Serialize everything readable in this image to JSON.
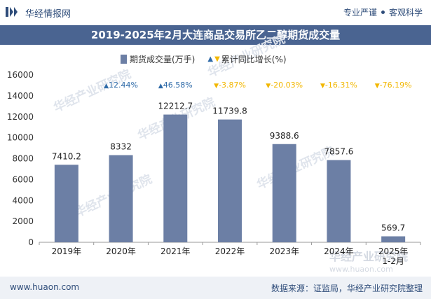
{
  "header": {
    "brand": "华经情报网",
    "tagline_left": "专业严谨",
    "tagline_right": "客观科学"
  },
  "title": "2019-2025年2月大连商品交易所乙二醇期货成交量",
  "footer": {
    "url": "www.huaon.com",
    "source": "数据来源：证监局，华经产业研究院整理"
  },
  "watermark": "华经产业研究院",
  "watermark_url": "www.huaon.com",
  "colors": {
    "bar": "#6c7fa5",
    "title_bg": "#4a6491",
    "up": "#2e6aa8",
    "down": "#f2b700"
  },
  "chart_data": {
    "type": "bar",
    "categories": [
      "2019年",
      "2020年",
      "2021年",
      "2022年",
      "2023年",
      "2024年",
      "2025年\n1-2月"
    ],
    "series": [
      {
        "name": "期货成交量(万手)",
        "values": [
          7410.2,
          8332,
          12212.7,
          11739.8,
          9388.6,
          7857.6,
          569.7
        ]
      },
      {
        "name": "累计同比增长(%)",
        "values": [
          null,
          12.44,
          46.58,
          -3.87,
          -20.03,
          -16.31,
          -76.19
        ],
        "labels": [
          "",
          "12.44%",
          "46.58%",
          "-3.87%",
          "-20.03%",
          "-16.31%",
          "-76.19%"
        ]
      }
    ],
    "value_labels": [
      "7410.2",
      "8332",
      "12212.7",
      "11739.8",
      "9388.6",
      "7857.6",
      "569.7"
    ],
    "yticks": [
      "0",
      "2000",
      "4000",
      "6000",
      "8000",
      "10000",
      "12000",
      "14000",
      "16000"
    ],
    "ylim": [
      0,
      16000
    ],
    "legend_position": "top",
    "grid": false
  }
}
